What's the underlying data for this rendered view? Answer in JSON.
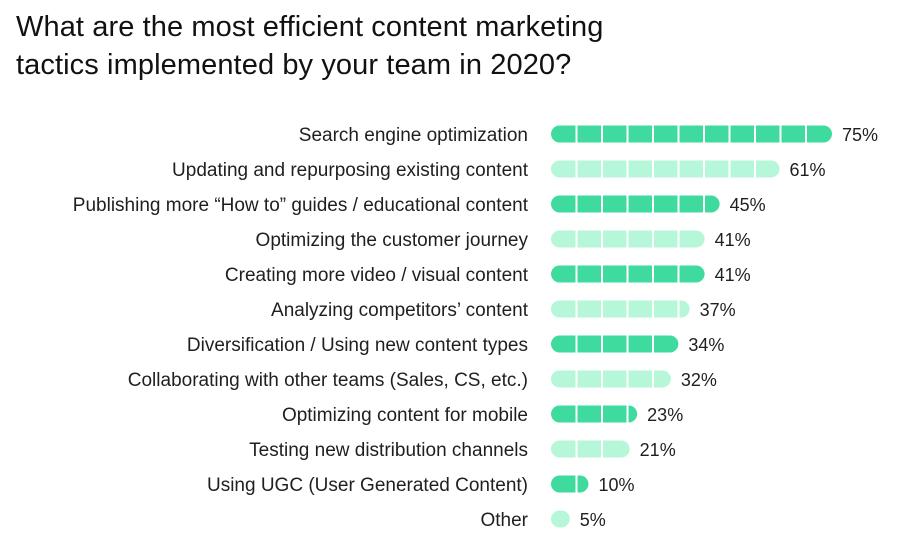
{
  "chart_data": {
    "type": "bar",
    "orientation": "horizontal",
    "title_lines": [
      "What are the most efficient content marketing",
      "tactics implemented by your team in 2020?"
    ],
    "categories": [
      "Search engine optimization",
      "Updating and repurposing existing content",
      "Publishing more “How to” guides / educational content",
      "Optimizing the customer journey",
      "Creating more video / visual content",
      "Analyzing competitors’ content",
      "Diversification / Using new content types",
      "Collaborating with other teams (Sales, CS, etc.)",
      "Optimizing content for mobile",
      "Testing new distribution channels",
      "Using UGC (User Generated Content)",
      "Other"
    ],
    "values": [
      75,
      61,
      45,
      41,
      41,
      37,
      34,
      32,
      23,
      21,
      10,
      5
    ],
    "value_labels": [
      "75%",
      "61%",
      "45%",
      "41%",
      "41%",
      "37%",
      "34%",
      "32%",
      "23%",
      "21%",
      "10%",
      "5%"
    ],
    "xlim": [
      0,
      75
    ],
    "grid": false,
    "colors": {
      "dark": "#3fdb9e",
      "light": "#b5f7d8"
    }
  }
}
